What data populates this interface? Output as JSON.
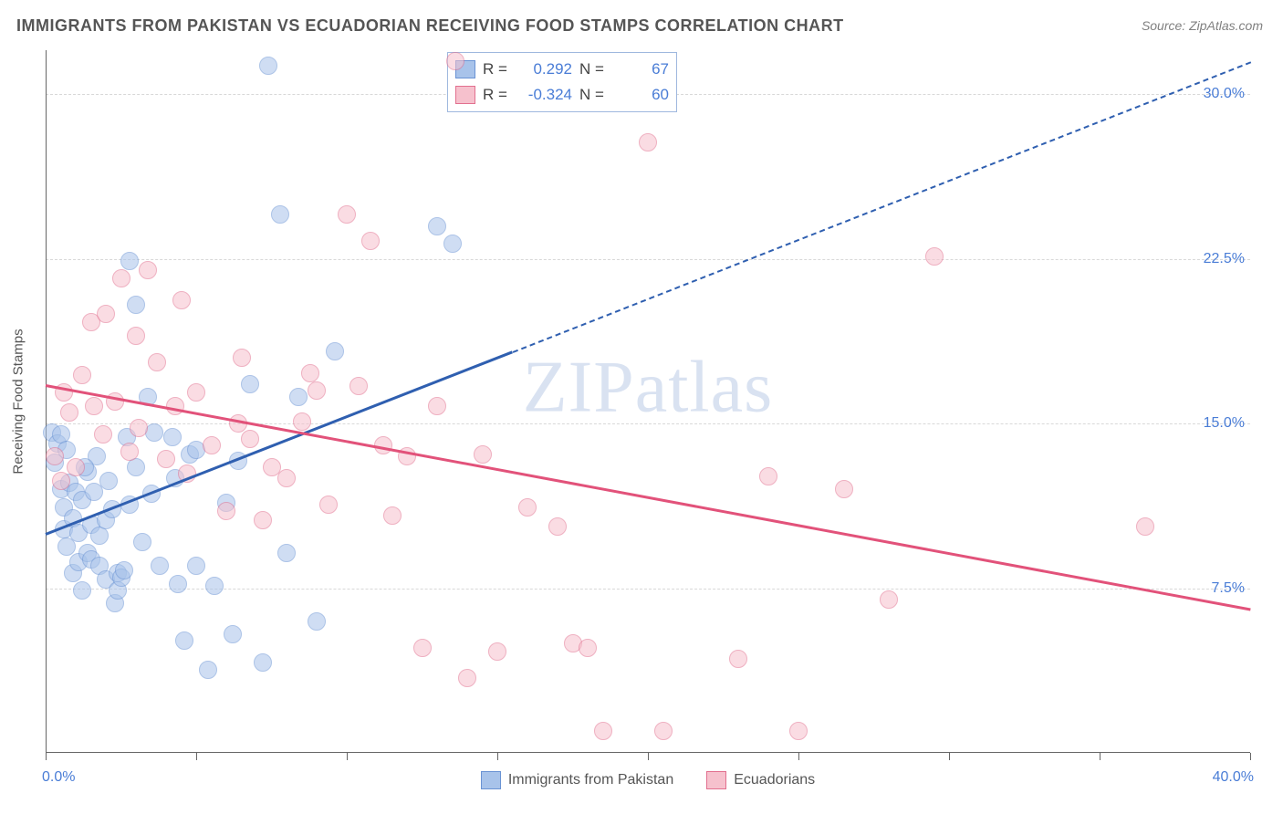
{
  "title": "IMMIGRANTS FROM PAKISTAN VS ECUADORIAN RECEIVING FOOD STAMPS CORRELATION CHART",
  "source_prefix": "Source: ",
  "source_name": "ZipAtlas.com",
  "watermark_a": "ZIP",
  "watermark_b": "atlas",
  "chart": {
    "type": "scatter",
    "x_axis": {
      "min": 0,
      "max": 40,
      "min_label": "0.0%",
      "max_label": "40.0%",
      "tick_positions": [
        0,
        5,
        10,
        15,
        20,
        25,
        30,
        35,
        40
      ]
    },
    "y_axis": {
      "min": 0,
      "max": 32,
      "title": "Receiving Food Stamps",
      "grid_ticks": [
        {
          "v": 7.5,
          "label": "7.5%"
        },
        {
          "v": 15.0,
          "label": "15.0%"
        },
        {
          "v": 22.5,
          "label": "22.5%"
        },
        {
          "v": 30.0,
          "label": "30.0%"
        }
      ],
      "label_color": "#4a7dd6"
    },
    "background_color": "#ffffff",
    "grid_color": "#d8d8d8",
    "axis_color": "#666666",
    "marker_radius": 10,
    "marker_opacity": 0.55,
    "marker_border_width": 1.5,
    "series": [
      {
        "id": "pakistan",
        "label": "Immigrants from Pakistan",
        "fill": "#a8c3ea",
        "stroke": "#6a93d4",
        "r_label": "R =",
        "r_value": "0.292",
        "n_label": "N =",
        "n_value": "67",
        "trend": {
          "color": "#2f5fb0",
          "solid_x1": 0,
          "solid_y1": 10.0,
          "solid_x2": 15.5,
          "solid_y2": 18.3,
          "dash_x2": 40,
          "dash_y2": 31.5
        },
        "points": [
          [
            0.2,
            14.6
          ],
          [
            0.3,
            13.2
          ],
          [
            0.4,
            14.1
          ],
          [
            0.5,
            14.5
          ],
          [
            0.5,
            12.0
          ],
          [
            0.6,
            11.2
          ],
          [
            0.6,
            10.2
          ],
          [
            0.7,
            13.8
          ],
          [
            0.7,
            9.4
          ],
          [
            0.8,
            12.3
          ],
          [
            0.9,
            10.7
          ],
          [
            0.9,
            8.2
          ],
          [
            1.0,
            11.9
          ],
          [
            1.1,
            8.7
          ],
          [
            1.1,
            10.0
          ],
          [
            1.2,
            7.4
          ],
          [
            1.2,
            11.5
          ],
          [
            1.4,
            9.1
          ],
          [
            1.4,
            12.8
          ],
          [
            1.5,
            8.8
          ],
          [
            1.5,
            10.4
          ],
          [
            1.6,
            11.9
          ],
          [
            1.7,
            13.5
          ],
          [
            1.8,
            8.5
          ],
          [
            1.8,
            9.9
          ],
          [
            2.0,
            7.9
          ],
          [
            2.0,
            10.6
          ],
          [
            2.1,
            12.4
          ],
          [
            2.2,
            11.1
          ],
          [
            2.3,
            6.8
          ],
          [
            2.4,
            7.4
          ],
          [
            2.4,
            8.2
          ],
          [
            2.5,
            8.0
          ],
          [
            2.6,
            8.3
          ],
          [
            2.7,
            14.4
          ],
          [
            2.8,
            22.4
          ],
          [
            2.8,
            11.3
          ],
          [
            3.0,
            20.4
          ],
          [
            3.0,
            13.0
          ],
          [
            3.2,
            9.6
          ],
          [
            3.4,
            16.2
          ],
          [
            3.5,
            11.8
          ],
          [
            3.6,
            14.6
          ],
          [
            3.8,
            8.5
          ],
          [
            4.2,
            14.4
          ],
          [
            4.3,
            12.5
          ],
          [
            4.4,
            7.7
          ],
          [
            4.6,
            5.1
          ],
          [
            4.8,
            13.6
          ],
          [
            5.0,
            8.5
          ],
          [
            5.4,
            3.8
          ],
          [
            5.6,
            7.6
          ],
          [
            6.0,
            11.4
          ],
          [
            6.2,
            5.4
          ],
          [
            6.4,
            13.3
          ],
          [
            6.8,
            16.8
          ],
          [
            7.2,
            4.1
          ],
          [
            7.4,
            31.3
          ],
          [
            7.8,
            24.5
          ],
          [
            8.0,
            9.1
          ],
          [
            8.4,
            16.2
          ],
          [
            9.0,
            6.0
          ],
          [
            9.6,
            18.3
          ],
          [
            13.0,
            24.0
          ],
          [
            13.5,
            23.2
          ],
          [
            5.0,
            13.8
          ],
          [
            1.3,
            13.0
          ]
        ]
      },
      {
        "id": "ecuadorian",
        "label": "Ecuadorians",
        "fill": "#f6c1cd",
        "stroke": "#e2708f",
        "r_label": "R =",
        "r_value": "-0.324",
        "n_label": "N =",
        "n_value": "60",
        "trend": {
          "color": "#e2527a",
          "solid_x1": 0,
          "solid_y1": 16.8,
          "solid_x2": 40,
          "solid_y2": 6.6,
          "dash_x2": null,
          "dash_y2": null
        },
        "points": [
          [
            0.3,
            13.5
          ],
          [
            0.5,
            12.4
          ],
          [
            0.6,
            16.4
          ],
          [
            0.8,
            15.5
          ],
          [
            1.2,
            17.2
          ],
          [
            1.5,
            19.6
          ],
          [
            1.6,
            15.8
          ],
          [
            1.9,
            14.5
          ],
          [
            2.0,
            20.0
          ],
          [
            2.3,
            16.0
          ],
          [
            2.5,
            21.6
          ],
          [
            2.8,
            13.7
          ],
          [
            3.1,
            14.8
          ],
          [
            3.4,
            22.0
          ],
          [
            3.7,
            17.8
          ],
          [
            4.0,
            13.4
          ],
          [
            4.3,
            15.8
          ],
          [
            4.7,
            12.7
          ],
          [
            5.0,
            16.4
          ],
          [
            5.5,
            14.0
          ],
          [
            6.0,
            11.0
          ],
          [
            6.4,
            15.0
          ],
          [
            6.8,
            14.3
          ],
          [
            7.2,
            10.6
          ],
          [
            7.5,
            13.0
          ],
          [
            8.0,
            12.5
          ],
          [
            8.5,
            15.1
          ],
          [
            9.0,
            16.5
          ],
          [
            9.4,
            11.3
          ],
          [
            10.0,
            24.5
          ],
          [
            10.4,
            16.7
          ],
          [
            10.8,
            23.3
          ],
          [
            11.2,
            14.0
          ],
          [
            13.6,
            31.5
          ],
          [
            11.5,
            10.8
          ],
          [
            12.0,
            13.5
          ],
          [
            12.5,
            4.8
          ],
          [
            13.0,
            15.8
          ],
          [
            14.0,
            3.4
          ],
          [
            14.5,
            13.6
          ],
          [
            15.0,
            4.6
          ],
          [
            16.0,
            11.2
          ],
          [
            17.0,
            10.3
          ],
          [
            17.5,
            5.0
          ],
          [
            18.0,
            4.8
          ],
          [
            18.5,
            1.0
          ],
          [
            20.0,
            27.8
          ],
          [
            20.5,
            1.0
          ],
          [
            24.0,
            12.6
          ],
          [
            25.0,
            1.0
          ],
          [
            26.5,
            12.0
          ],
          [
            28.0,
            7.0
          ],
          [
            23.0,
            4.3
          ],
          [
            29.5,
            22.6
          ],
          [
            36.5,
            10.3
          ],
          [
            3.0,
            19.0
          ],
          [
            4.5,
            20.6
          ],
          [
            6.5,
            18.0
          ],
          [
            8.8,
            17.3
          ],
          [
            1.0,
            13.0
          ]
        ]
      }
    ],
    "legend": [
      {
        "series": "pakistan"
      },
      {
        "series": "ecuadorian"
      }
    ]
  }
}
